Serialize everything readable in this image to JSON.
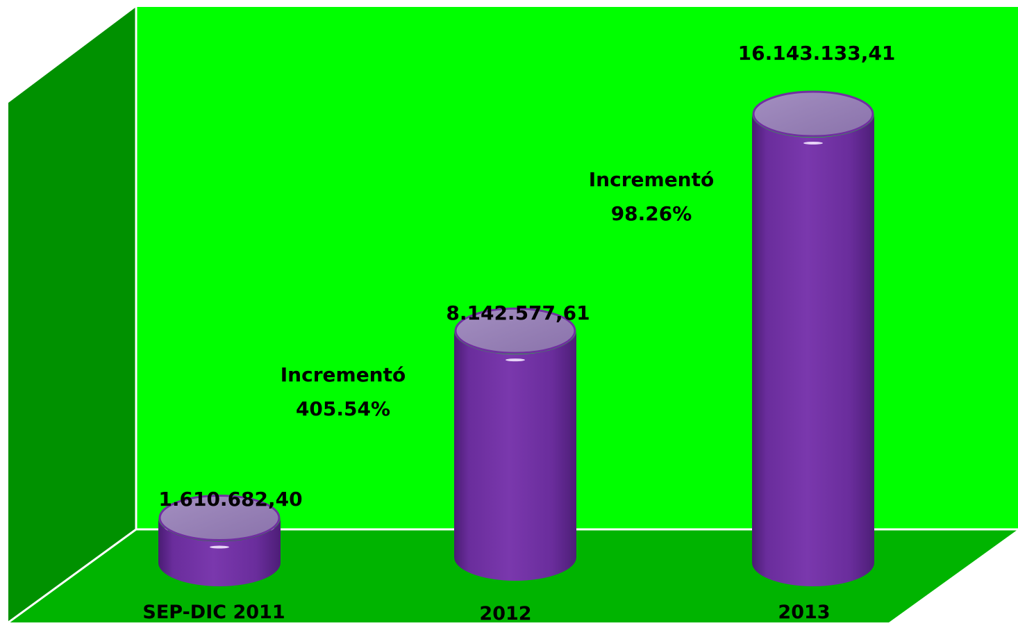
{
  "chart_data": {
    "type": "bar",
    "bar_shape": "cylinder",
    "categories": [
      "SEP-DIC 2011",
      "2012",
      "2013"
    ],
    "values": [
      1610682.4,
      8142577.61,
      16143133.41
    ],
    "value_labels": [
      "1.610.682,40",
      "8.142.577,61",
      "16.143.133,41"
    ],
    "annotations": [
      {
        "text": "Incrementó",
        "percent": "405.54%"
      },
      {
        "text": "Incrementó",
        "percent": "98.26%"
      }
    ],
    "title": "",
    "xlabel": "",
    "ylabel": "",
    "ylim": [
      0,
      17000000
    ],
    "grid": false,
    "legend": "none",
    "colors": {
      "back_wall": "#00ff00",
      "side_wall": "#009100",
      "floor": "#00b400",
      "bar": "#7030a0",
      "bar_dark": "#4e1f78",
      "bar_top": "#9a84b8",
      "border": "#ffffff"
    }
  }
}
